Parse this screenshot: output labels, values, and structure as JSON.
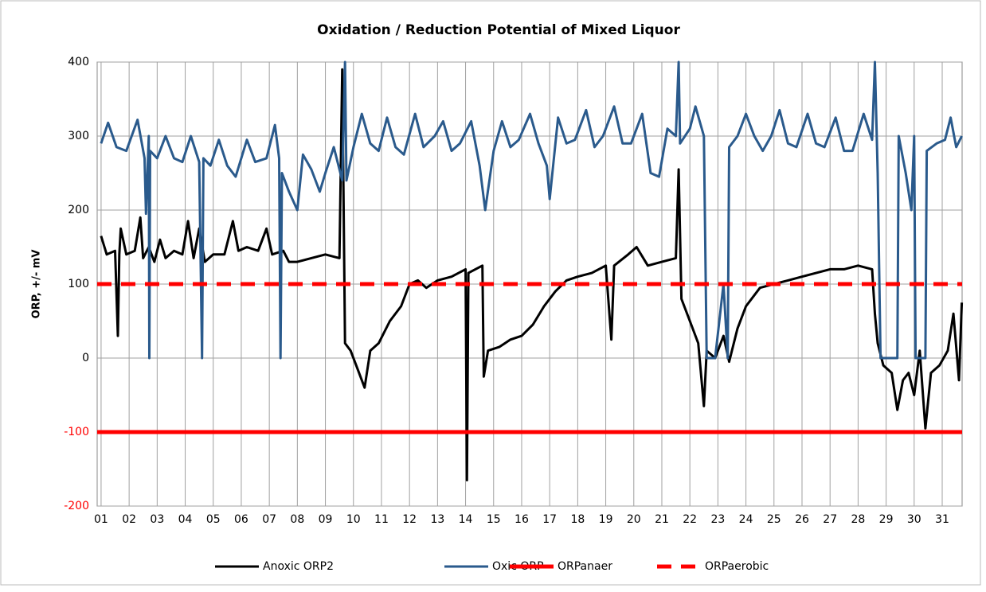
{
  "chart_data": {
    "type": "line",
    "title": "Oxidation / Reduction Potential of Mixed Liquor",
    "ylabel": "ORP, +/- mV",
    "xlim": [
      0.86,
      31.71
    ],
    "xticks": [
      {
        "value": 1,
        "label": "01"
      },
      {
        "value": 2,
        "label": "02"
      },
      {
        "value": 3,
        "label": "03"
      },
      {
        "value": 4,
        "label": "04"
      },
      {
        "value": 5,
        "label": "05"
      },
      {
        "value": 6,
        "label": "06"
      },
      {
        "value": 7,
        "label": "07"
      },
      {
        "value": 8,
        "label": "08"
      },
      {
        "value": 9,
        "label": "09"
      },
      {
        "value": 10,
        "label": "10"
      },
      {
        "value": 11,
        "label": "11"
      },
      {
        "value": 12,
        "label": "12"
      },
      {
        "value": 13,
        "label": "13"
      },
      {
        "value": 14,
        "label": "14"
      },
      {
        "value": 15,
        "label": "15"
      },
      {
        "value": 16,
        "label": "16"
      },
      {
        "value": 17,
        "label": "17"
      },
      {
        "value": 18,
        "label": "18"
      },
      {
        "value": 19,
        "label": "19"
      },
      {
        "value": 20,
        "label": "20"
      },
      {
        "value": 21,
        "label": "21"
      },
      {
        "value": 22,
        "label": "22"
      },
      {
        "value": 23,
        "label": "23"
      },
      {
        "value": 24,
        "label": "24"
      },
      {
        "value": 25,
        "label": "25"
      },
      {
        "value": 26,
        "label": "26"
      },
      {
        "value": 27,
        "label": "27"
      },
      {
        "value": 28,
        "label": "28"
      },
      {
        "value": 29,
        "label": "29"
      },
      {
        "value": 30,
        "label": "30"
      },
      {
        "value": 31,
        "label": "31"
      }
    ],
    "ylim": [
      -200,
      400
    ],
    "yticks": [
      -200,
      -100,
      0,
      100,
      200,
      300,
      400
    ],
    "negative_tick_color": "#ff0000",
    "grid": true,
    "legend": "bottom",
    "series": [
      {
        "name": "Anoxic ORP2",
        "color": "#000000",
        "width": 3,
        "x": [
          1,
          1.2,
          1.5,
          1.6,
          1.65,
          1.7,
          1.9,
          2.2,
          2.4,
          2.5,
          2.7,
          2.9,
          3.1,
          3.3,
          3.6,
          3.9,
          4.1,
          4.3,
          4.5,
          4.7,
          5.0,
          5.4,
          5.7,
          5.9,
          6.2,
          6.6,
          6.9,
          7.1,
          7.5,
          7.7,
          8.0,
          8.5,
          9.0,
          9.5,
          9.6,
          9.7,
          9.9,
          10.1,
          10.4,
          10.6,
          10.9,
          11.3,
          11.7,
          12.0,
          12.3,
          12.6,
          13.0,
          13.5,
          14.0,
          14.05,
          14.1,
          14.6,
          14.65,
          14.8,
          15.2,
          15.6,
          16.0,
          16.4,
          16.8,
          17.2,
          17.6,
          18.0,
          18.5,
          19.0,
          19.2,
          19.3,
          19.8,
          20.1,
          20.5,
          21.0,
          21.5,
          21.6,
          21.7,
          22.0,
          22.3,
          22.5,
          22.6,
          22.9,
          23.2,
          23.4,
          23.7,
          24.0,
          24.5,
          25.0,
          25.5,
          26.0,
          26.5,
          27.0,
          27.5,
          28.0,
          28.5,
          28.6,
          28.7,
          28.9,
          29.2,
          29.4,
          29.6,
          29.8,
          30.0,
          30.2,
          30.4,
          30.6,
          30.9,
          31.2,
          31.4,
          31.6,
          31.7
        ],
        "values": [
          165,
          140,
          145,
          30,
          140,
          175,
          140,
          145,
          190,
          135,
          150,
          130,
          160,
          135,
          145,
          140,
          185,
          135,
          175,
          130,
          140,
          140,
          185,
          145,
          150,
          145,
          175,
          140,
          145,
          130,
          130,
          135,
          140,
          135,
          390,
          20,
          10,
          -10,
          -40,
          10,
          20,
          50,
          70,
          100,
          105,
          95,
          105,
          110,
          120,
          -165,
          115,
          125,
          -25,
          10,
          15,
          25,
          30,
          45,
          70,
          90,
          105,
          110,
          115,
          125,
          25,
          125,
          140,
          150,
          125,
          130,
          135,
          255,
          80,
          50,
          20,
          -65,
          10,
          0,
          30,
          -5,
          40,
          70,
          95,
          100,
          105,
          110,
          115,
          120,
          120,
          125,
          120,
          60,
          20,
          -10,
          -20,
          -70,
          -30,
          -20,
          -50,
          10,
          -95,
          -20,
          -10,
          10,
          60,
          -30,
          75
        ]
      },
      {
        "name": "Oxic ORP",
        "color": "#2a5a8c",
        "width": 3,
        "x": [
          1,
          1.25,
          1.55,
          1.9,
          2.3,
          2.55,
          2.6,
          2.7,
          2.72,
          2.75,
          3.0,
          3.3,
          3.6,
          3.9,
          4.2,
          4.5,
          4.6,
          4.65,
          4.9,
          5.2,
          5.5,
          5.8,
          6.2,
          6.5,
          6.9,
          7.2,
          7.35,
          7.4,
          7.45,
          7.7,
          8.0,
          8.2,
          8.5,
          8.8,
          9.0,
          9.3,
          9.6,
          9.7,
          9.75,
          10.0,
          10.3,
          10.6,
          10.9,
          11.2,
          11.5,
          11.8,
          12.2,
          12.5,
          12.9,
          13.2,
          13.5,
          13.8,
          14.2,
          14.5,
          14.7,
          15.0,
          15.3,
          15.6,
          15.9,
          16.3,
          16.6,
          16.9,
          17.0,
          17.3,
          17.6,
          17.9,
          18.3,
          18.6,
          18.9,
          19.3,
          19.6,
          19.9,
          20.3,
          20.6,
          20.9,
          21.2,
          21.5,
          21.6,
          21.65,
          22.0,
          22.2,
          22.5,
          22.6,
          22.9,
          23.2,
          23.35,
          23.4,
          23.7,
          24.0,
          24.3,
          24.6,
          24.9,
          25.2,
          25.5,
          25.8,
          26.2,
          26.5,
          26.8,
          27.2,
          27.5,
          27.8,
          28.2,
          28.5,
          28.6,
          28.7,
          28.8,
          29.4,
          29.45,
          29.7,
          29.9,
          30.0,
          30.05,
          30.4,
          30.45,
          30.8,
          31.1,
          31.3,
          31.5,
          31.7
        ],
        "values": [
          290,
          318,
          285,
          280,
          322,
          270,
          195,
          300,
          0,
          280,
          270,
          300,
          270,
          265,
          300,
          265,
          0,
          270,
          260,
          295,
          260,
          245,
          295,
          265,
          270,
          315,
          270,
          0,
          250,
          225,
          200,
          275,
          255,
          225,
          250,
          285,
          240,
          400,
          240,
          285,
          330,
          290,
          280,
          325,
          285,
          275,
          330,
          285,
          300,
          320,
          280,
          290,
          320,
          260,
          200,
          280,
          320,
          285,
          295,
          330,
          290,
          260,
          215,
          325,
          290,
          295,
          335,
          285,
          300,
          340,
          290,
          290,
          330,
          250,
          245,
          310,
          300,
          400,
          290,
          310,
          340,
          300,
          0,
          0,
          100,
          0,
          285,
          300,
          330,
          300,
          280,
          300,
          335,
          290,
          285,
          330,
          290,
          285,
          325,
          280,
          280,
          330,
          295,
          400,
          250,
          0,
          0,
          300,
          250,
          200,
          300,
          0,
          0,
          280,
          290,
          295,
          325,
          285,
          300
        ]
      },
      {
        "name": "ORPanaer",
        "color": "#ff0000",
        "width": 5,
        "x": [
          0.86,
          31.71
        ],
        "values": [
          -100,
          -100
        ]
      },
      {
        "name": "ORPaerobic",
        "color": "#ff0000",
        "width": 5,
        "dash": "18,12",
        "x": [
          0.86,
          31.71
        ],
        "values": [
          100,
          100
        ]
      }
    ]
  }
}
